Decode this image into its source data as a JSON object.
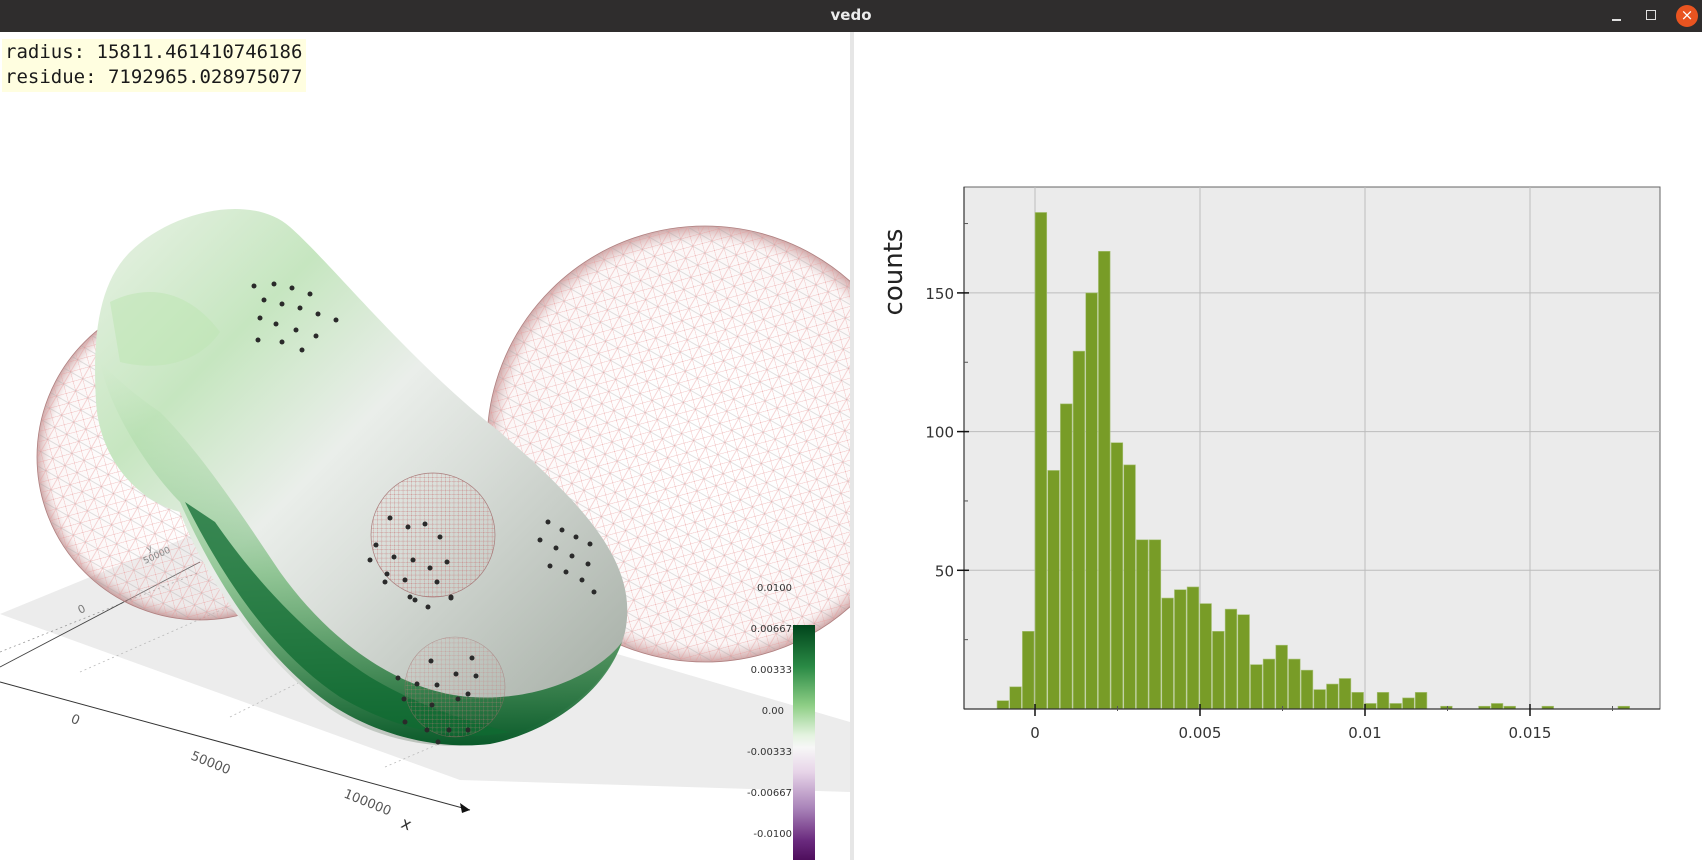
{
  "window": {
    "title": "vedo",
    "controls": {
      "minimize": "minimize-icon",
      "maximize": "maximize-icon",
      "close": "×"
    }
  },
  "left_panel": {
    "info_lines": [
      "radius: 15811.461410746186",
      "residue: 7192965.028975077"
    ],
    "axes": {
      "x_label": "x",
      "x_ticks": [
        "0",
        "50000",
        "100000"
      ],
      "y_label": "y",
      "y_ticks": [
        "0",
        "50000"
      ]
    },
    "colorbar": {
      "labels": [
        "0.0100",
        "0.00667",
        "0.00333",
        "0.00",
        "-0.00333",
        "-0.00667",
        "-0.0100"
      ],
      "colors": [
        "#00441b",
        "#5aae61",
        "#d9f0d3",
        "#f7f7f7",
        "#e7d4e8",
        "#9970ab",
        "#40004b"
      ]
    }
  },
  "chart_data": {
    "type": "bar",
    "title": "",
    "xlabel": "",
    "ylabel": "counts",
    "xticks": [
      "0",
      "0.005",
      "0.01",
      "0.015"
    ],
    "yticks": [
      "50",
      "100",
      "150"
    ],
    "xlim": [
      -0.0021,
      0.0189
    ],
    "ylim": [
      0,
      188
    ],
    "grid": true,
    "bar_color": "#789c27",
    "background": "#ebebeb",
    "bin_width": 0.000384,
    "bin_start": -0.00115,
    "values": [
      3,
      8,
      28,
      179,
      86,
      110,
      129,
      150,
      165,
      96,
      88,
      61,
      61,
      40,
      43,
      44,
      38,
      28,
      36,
      34,
      16,
      18,
      23,
      18,
      14,
      7,
      9,
      11,
      6,
      2,
      6,
      2,
      4,
      6,
      0,
      1,
      0,
      0,
      1,
      2,
      1,
      0,
      0,
      1,
      0,
      0,
      0,
      0,
      0,
      1
    ]
  }
}
